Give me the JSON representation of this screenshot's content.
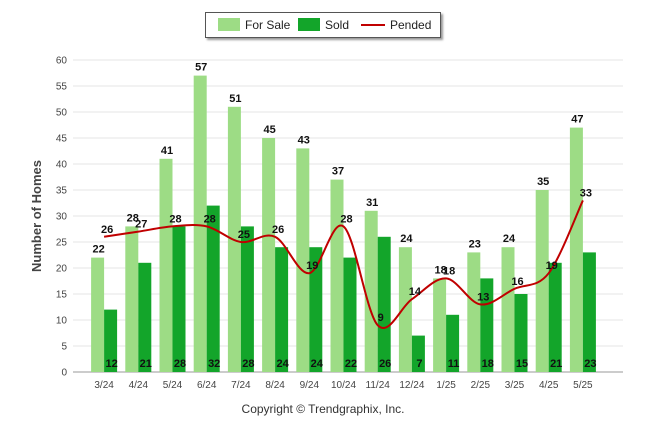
{
  "chart_data": {
    "type": "bar",
    "ylabel": "Number of Homes",
    "xlabel": "",
    "ylim": [
      0,
      60
    ],
    "yticks": [
      0,
      5,
      10,
      15,
      20,
      25,
      30,
      35,
      40,
      45,
      50,
      55,
      60
    ],
    "categories": [
      "3/24",
      "4/24",
      "5/24",
      "6/24",
      "7/24",
      "8/24",
      "9/24",
      "10/24",
      "11/24",
      "12/24",
      "1/25",
      "2/25",
      "3/25",
      "4/25",
      "5/25"
    ],
    "series": [
      {
        "name": "For Sale",
        "kind": "bar",
        "color": "#9ddc85",
        "values": [
          22,
          28,
          41,
          57,
          51,
          45,
          43,
          37,
          31,
          24,
          18,
          23,
          24,
          35,
          47
        ]
      },
      {
        "name": "Sold",
        "kind": "bar",
        "color": "#13a52a",
        "values": [
          12,
          21,
          28,
          32,
          28,
          24,
          24,
          22,
          26,
          7,
          11,
          18,
          15,
          21,
          23
        ]
      },
      {
        "name": "Pended",
        "kind": "line",
        "color": "#c00000",
        "values": [
          26,
          27,
          28,
          28,
          25,
          26,
          19,
          28,
          9,
          14,
          18,
          13,
          16,
          19,
          33
        ]
      }
    ],
    "legend_position": "top-center",
    "grid": true
  },
  "footer": {
    "copyright": "Copyright © Trendgraphix, Inc."
  }
}
